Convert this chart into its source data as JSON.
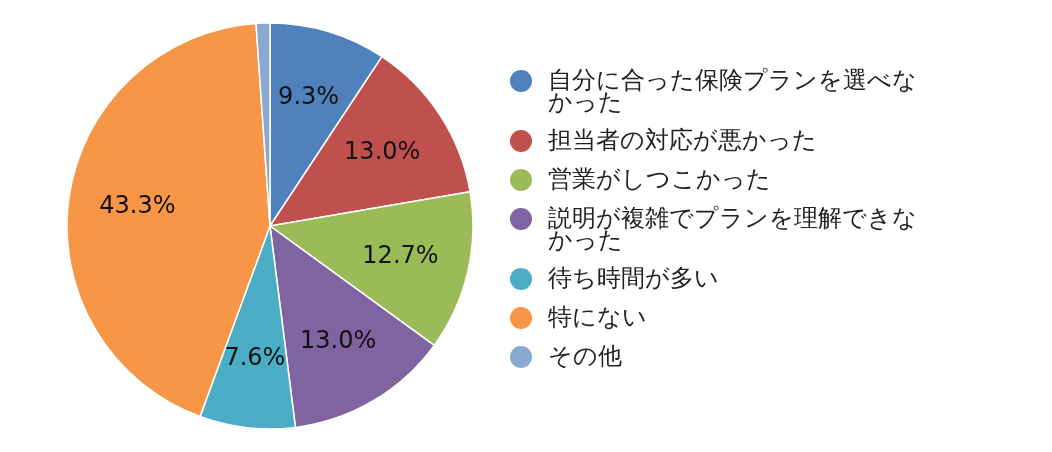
{
  "chart_data": {
    "type": "pie",
    "categories": [
      "自分に合った保険プランを選べなかった",
      "担当者の対応が悪かった",
      "営業がしつこかった",
      "説明が複雑でプランを理解できなかった",
      "待ち時間が多い",
      "特にない",
      "その他"
    ],
    "values": [
      9.3,
      13.0,
      12.7,
      13.0,
      7.6,
      43.3,
      1.1
    ],
    "colors": [
      "#4f81bd",
      "#c0504d",
      "#9bbb59",
      "#8064a2",
      "#4bacc6",
      "#f79646",
      "#8aa9d0"
    ],
    "value_labels": [
      "9.3%",
      "13.0%",
      "12.7%",
      "13.0%",
      "7.6%",
      "43.3%",
      null
    ],
    "legend": "right"
  }
}
